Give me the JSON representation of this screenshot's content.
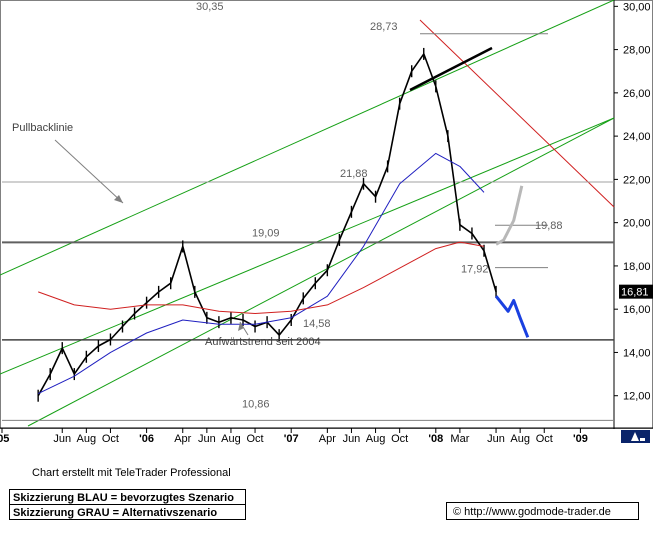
{
  "footer": {
    "credit": "Chart erstellt mit TeleTrader Professional",
    "blue_note": "Skizzierung BLAU = bevorzugtes Szenario",
    "grey_note": "Skizzierung GRAU = Alternativszenario",
    "copyright_symbol": "©",
    "url": "http://www.godmode-trader.de"
  },
  "colors": {
    "price": "#000000",
    "ma_blue": "#2020c0",
    "ma_red": "#d02020",
    "trend_green": "#16a016",
    "horizontal": "#000000",
    "scenario_blue": "#1a40e0",
    "scenario_grey": "#b8b8b8",
    "last_price_bg": "#000000"
  },
  "chart_data": {
    "type": "line",
    "title": "",
    "ylim": [
      10.6,
      30.2
    ],
    "y_ticks": [
      "12,00",
      "14,00",
      "16,00",
      "18,00",
      "20,00",
      "22,00",
      "24,00",
      "26,00",
      "28,00",
      "30,00"
    ],
    "x_ticks": [
      "'05",
      "Jun",
      "Aug",
      "Oct",
      "'06",
      "Apr",
      "Jun",
      "Aug",
      "Oct",
      "'07",
      "Apr",
      "Jun",
      "Aug",
      "Oct",
      "'08",
      "Mar",
      "Jun",
      "Aug",
      "Oct",
      "'09"
    ],
    "last_price": "16,81",
    "levels": [
      {
        "value": 30.35,
        "label": "30,35",
        "line": false
      },
      {
        "value": 28.73,
        "label": "28,73",
        "line": true
      },
      {
        "value": 21.88,
        "label": "21,88",
        "line": true
      },
      {
        "value": 19.88,
        "label": "19,88",
        "line": true
      },
      {
        "value": 19.09,
        "label": "19,09",
        "line": true
      },
      {
        "value": 17.92,
        "label": "17,92",
        "line": true
      },
      {
        "value": 14.58,
        "label": "14,58",
        "line": true
      },
      {
        "value": 10.86,
        "label": "10,86",
        "line": true
      }
    ],
    "annotations": [
      {
        "text": "Pullbacklinie"
      },
      {
        "text": "Aufwärtstrend seit 2004"
      }
    ],
    "series": [
      {
        "kind": "price",
        "x": [
          "2005-04",
          "2005-05",
          "2005-06",
          "2005-07",
          "2005-08",
          "2005-09",
          "2005-10",
          "2005-11",
          "2005-12",
          "2006-01",
          "2006-02",
          "2006-03",
          "2006-04",
          "2006-05",
          "2006-06",
          "2006-07",
          "2006-08",
          "2006-09",
          "2006-10",
          "2006-11",
          "2006-12",
          "2007-01",
          "2007-02",
          "2007-03",
          "2007-04",
          "2007-05",
          "2007-06",
          "2007-07",
          "2007-08",
          "2007-09",
          "2007-10",
          "2007-11",
          "2007-12",
          "2008-01",
          "2008-02",
          "2008-03",
          "2008-04",
          "2008-05",
          "2008-06"
        ],
        "values": [
          12.0,
          13.0,
          14.2,
          13.0,
          13.8,
          14.3,
          14.6,
          15.2,
          15.8,
          16.3,
          16.8,
          17.2,
          18.9,
          16.8,
          15.6,
          15.4,
          15.6,
          15.5,
          15.2,
          15.4,
          14.8,
          15.5,
          16.5,
          17.2,
          17.8,
          19.2,
          20.5,
          21.8,
          21.2,
          22.6,
          25.5,
          27.0,
          27.8,
          26.3,
          24.0,
          19.9,
          19.5,
          18.7,
          16.8
        ]
      },
      {
        "kind": "ma_blue",
        "x": [
          "2005-04",
          "2005-07",
          "2005-10",
          "2006-01",
          "2006-04",
          "2006-07",
          "2006-10",
          "2007-01",
          "2007-04",
          "2007-07",
          "2007-10",
          "2008-01",
          "2008-03",
          "2008-05"
        ],
        "values": [
          12.1,
          12.9,
          14.0,
          14.9,
          15.5,
          15.3,
          15.3,
          15.6,
          16.6,
          18.9,
          21.8,
          23.2,
          22.6,
          21.4
        ]
      },
      {
        "kind": "ma_red",
        "x": [
          "2005-04",
          "2005-07",
          "2005-10",
          "2006-01",
          "2006-04",
          "2006-07",
          "2006-10",
          "2007-01",
          "2007-04",
          "2007-07",
          "2007-10",
          "2008-01",
          "2008-03",
          "2008-05"
        ],
        "values": [
          16.8,
          16.2,
          16.0,
          16.2,
          16.2,
          15.9,
          15.8,
          15.9,
          16.2,
          17.0,
          17.9,
          18.8,
          19.1,
          18.9
        ]
      },
      {
        "kind": "scenario_blue",
        "x": [
          "2008-06",
          "2008-07",
          "2008-07-15",
          "2008-08-01",
          "2008-08-20"
        ],
        "values": [
          16.6,
          15.9,
          16.4,
          15.6,
          14.7
        ]
      },
      {
        "kind": "scenario_grey",
        "x": [
          "2008-06",
          "2008-06-20",
          "2008-07-15",
          "2008-08-05"
        ],
        "values": [
          19.0,
          19.2,
          20.1,
          21.7
        ]
      }
    ]
  }
}
